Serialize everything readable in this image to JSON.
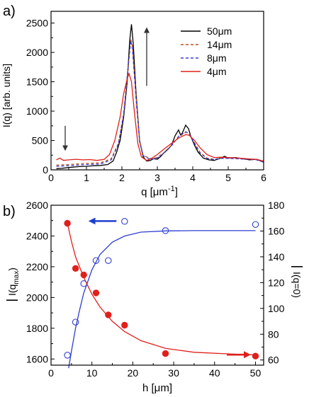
{
  "chart_data": [
    {
      "type": "line",
      "panel_label": "a)",
      "xlabel": "q [μm",
      "xlabel_sup": "-1",
      "xlabel_close": "]",
      "ylabel": "I(q) [arb. units]",
      "xlim": [
        0,
        6
      ],
      "ylim": [
        0,
        2700
      ],
      "xticks": [
        0,
        1,
        2,
        3,
        4,
        5,
        6
      ],
      "yticks": [
        0,
        500,
        1000,
        1500,
        2000,
        2500
      ],
      "legend_position": "top-right",
      "series": [
        {
          "name": "50μm",
          "color": "#000000",
          "dash": "solid",
          "points": [
            [
              0.15,
              20
            ],
            [
              0.3,
              25
            ],
            [
              0.5,
              40
            ],
            [
              0.8,
              55
            ],
            [
              1.0,
              60
            ],
            [
              1.2,
              70
            ],
            [
              1.4,
              75
            ],
            [
              1.6,
              90
            ],
            [
              1.75,
              150
            ],
            [
              1.85,
              300
            ],
            [
              1.95,
              500
            ],
            [
              2.05,
              900
            ],
            [
              2.15,
              1500
            ],
            [
              2.22,
              2200
            ],
            [
              2.27,
              2480
            ],
            [
              2.32,
              2150
            ],
            [
              2.4,
              1300
            ],
            [
              2.5,
              500
            ],
            [
              2.6,
              220
            ],
            [
              2.7,
              150
            ],
            [
              2.8,
              160
            ],
            [
              2.9,
              190
            ],
            [
              3.0,
              180
            ],
            [
              3.1,
              230
            ],
            [
              3.2,
              300
            ],
            [
              3.3,
              350
            ],
            [
              3.4,
              420
            ],
            [
              3.5,
              580
            ],
            [
              3.6,
              680
            ],
            [
              3.65,
              600
            ],
            [
              3.7,
              620
            ],
            [
              3.8,
              760
            ],
            [
              3.88,
              700
            ],
            [
              3.95,
              560
            ],
            [
              4.05,
              420
            ],
            [
              4.15,
              300
            ],
            [
              4.3,
              200
            ],
            [
              4.45,
              170
            ],
            [
              4.6,
              160
            ],
            [
              4.75,
              190
            ],
            [
              4.9,
              230
            ],
            [
              5.0,
              200
            ],
            [
              5.2,
              210
            ],
            [
              5.4,
              190
            ],
            [
              5.6,
              170
            ],
            [
              5.8,
              180
            ],
            [
              6.0,
              130
            ]
          ]
        },
        {
          "name": "14μm",
          "color": "#b5521b",
          "dash": "4,3",
          "points": [
            [
              0.15,
              80
            ],
            [
              0.5,
              90
            ],
            [
              1.0,
              110
            ],
            [
              1.4,
              120
            ],
            [
              1.7,
              190
            ],
            [
              1.9,
              450
            ],
            [
              2.05,
              950
            ],
            [
              2.15,
              1550
            ],
            [
              2.25,
              2230
            ],
            [
              2.3,
              2100
            ],
            [
              2.4,
              1250
            ],
            [
              2.5,
              500
            ],
            [
              2.6,
              250
            ],
            [
              2.8,
              190
            ],
            [
              3.0,
              210
            ],
            [
              3.2,
              300
            ],
            [
              3.4,
              420
            ],
            [
              3.6,
              560
            ],
            [
              3.8,
              640
            ],
            [
              3.9,
              620
            ],
            [
              4.05,
              460
            ],
            [
              4.2,
              300
            ],
            [
              4.4,
              200
            ],
            [
              4.6,
              180
            ],
            [
              4.8,
              200
            ],
            [
              5.0,
              200
            ],
            [
              5.4,
              190
            ],
            [
              5.8,
              175
            ],
            [
              6.0,
              140
            ]
          ]
        },
        {
          "name": "8μm",
          "color": "#3a3ad6",
          "dash": "4,3",
          "points": [
            [
              0.15,
              60
            ],
            [
              0.5,
              70
            ],
            [
              1.0,
              90
            ],
            [
              1.4,
              100
            ],
            [
              1.7,
              170
            ],
            [
              1.9,
              430
            ],
            [
              2.05,
              950
            ],
            [
              2.15,
              1600
            ],
            [
              2.25,
              2200
            ],
            [
              2.3,
              2050
            ],
            [
              2.4,
              1200
            ],
            [
              2.5,
              480
            ],
            [
              2.6,
              240
            ],
            [
              2.8,
              180
            ],
            [
              3.0,
              200
            ],
            [
              3.2,
              290
            ],
            [
              3.4,
              410
            ],
            [
              3.6,
              570
            ],
            [
              3.8,
              650
            ],
            [
              3.9,
              610
            ],
            [
              4.05,
              450
            ],
            [
              4.2,
              290
            ],
            [
              4.4,
              195
            ],
            [
              4.6,
              175
            ],
            [
              4.8,
              195
            ],
            [
              5.0,
              195
            ],
            [
              5.4,
              185
            ],
            [
              5.8,
              170
            ],
            [
              6.0,
              130
            ]
          ]
        },
        {
          "name": "4μm",
          "color": "#e0201b",
          "dash": "solid",
          "points": [
            [
              0.15,
              170
            ],
            [
              0.25,
              200
            ],
            [
              0.35,
              160
            ],
            [
              0.5,
              170
            ],
            [
              0.7,
              180
            ],
            [
              0.9,
              170
            ],
            [
              1.1,
              175
            ],
            [
              1.3,
              160
            ],
            [
              1.5,
              180
            ],
            [
              1.65,
              260
            ],
            [
              1.8,
              500
            ],
            [
              1.95,
              900
            ],
            [
              2.05,
              1300
            ],
            [
              2.15,
              1550
            ],
            [
              2.2,
              1640
            ],
            [
              2.27,
              1500
            ],
            [
              2.35,
              1000
            ],
            [
              2.45,
              450
            ],
            [
              2.55,
              220
            ],
            [
              2.7,
              160
            ],
            [
              2.85,
              200
            ],
            [
              3.0,
              260
            ],
            [
              3.2,
              360
            ],
            [
              3.4,
              450
            ],
            [
              3.6,
              540
            ],
            [
              3.8,
              600
            ],
            [
              3.9,
              590
            ],
            [
              4.05,
              500
            ],
            [
              4.2,
              380
            ],
            [
              4.4,
              260
            ],
            [
              4.6,
              210
            ],
            [
              4.8,
              215
            ],
            [
              5.0,
              210
            ],
            [
              5.3,
              200
            ],
            [
              5.6,
              185
            ],
            [
              5.8,
              180
            ],
            [
              6.0,
              150
            ]
          ]
        }
      ],
      "arrows": [
        {
          "x": 0.4,
          "y_from": 750,
          "y_to": 370
        },
        {
          "x": 2.7,
          "y_from": 1430,
          "y_to": 2380
        }
      ]
    },
    {
      "type": "scatter",
      "panel_label": "b)",
      "xlabel": "h [μm]",
      "ylabel_left": "I(q",
      "ylabel_left_sub": "max",
      "ylabel_left_close": ")",
      "ylabel_right": "I(q=0)",
      "xlim": [
        0,
        52
      ],
      "ylim_left": [
        1560,
        2600
      ],
      "ylim_right": [
        56,
        180
      ],
      "xticks": [
        0,
        10,
        20,
        30,
        40,
        50
      ],
      "yticks_left": [
        1600,
        1800,
        2000,
        2200,
        2400,
        2600
      ],
      "yticks_right": [
        60,
        80,
        100,
        120,
        140,
        160,
        180
      ],
      "series": [
        {
          "name": "",
          "axis": "left",
          "marker": "open-circle",
          "color": "#2f3fd0",
          "x": [
            4,
            6,
            8,
            11,
            14,
            18,
            28,
            50
          ],
          "y": [
            1625,
            1840,
            2090,
            2240,
            2240,
            2495,
            2435,
            2475
          ],
          "fit": [
            [
              4.3,
              1540
            ],
            [
              5,
              1650
            ],
            [
              6,
              1800
            ],
            [
              7,
              1920
            ],
            [
              8,
              2030
            ],
            [
              10,
              2180
            ],
            [
              12,
              2280
            ],
            [
              15,
              2360
            ],
            [
              18,
              2400
            ],
            [
              22,
              2425
            ],
            [
              28,
              2433
            ],
            [
              35,
              2435
            ],
            [
              50,
              2435
            ]
          ]
        },
        {
          "name": "",
          "axis": "right",
          "marker": "filled-circle",
          "color": "#e0201b",
          "x": [
            4,
            6,
            8,
            11,
            14,
            18,
            28,
            50
          ],
          "y": [
            166,
            131,
            126,
            112,
            95,
            87,
            65,
            63
          ],
          "fit": [
            [
              4,
              166
            ],
            [
              5,
              152
            ],
            [
              6,
              140
            ],
            [
              8,
              124
            ],
            [
              10,
              111
            ],
            [
              12,
              101
            ],
            [
              15,
              90
            ],
            [
              18,
              82
            ],
            [
              22,
              75
            ],
            [
              28,
              69
            ],
            [
              35,
              66
            ],
            [
              45,
              64.5
            ],
            [
              50,
              64
            ]
          ]
        }
      ],
      "direction_arrows": [
        {
          "color": "#1f3fd0",
          "x_from": 16,
          "x_to": 10,
          "y_left": 2497
        },
        {
          "color": "#e0201b",
          "x_from": 43,
          "x_to": 48,
          "y_left": 1628
        }
      ]
    }
  ]
}
